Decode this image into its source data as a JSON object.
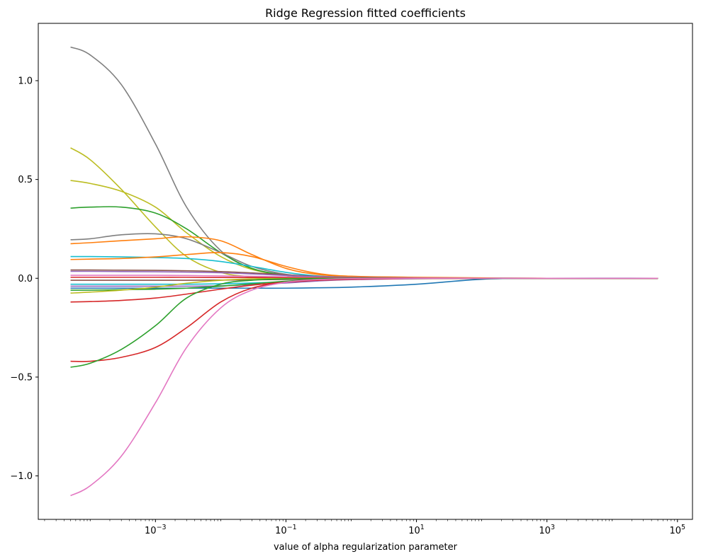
{
  "chart_data": {
    "type": "line",
    "title": "Ridge Regression fitted coefficients",
    "xlabel": "value of alpha regularization parameter",
    "ylabel": "",
    "x_scale": "log",
    "xlim": [
      1.6e-05,
      170000.0
    ],
    "ylim": [
      -1.22,
      1.29
    ],
    "x_ticks": [
      {
        "value": 0.001,
        "base": "10",
        "exp": "−3"
      },
      {
        "value": 0.1,
        "base": "10",
        "exp": "−1"
      },
      {
        "value": 10,
        "base": "10",
        "exp": "1"
      },
      {
        "value": 1000,
        "base": "10",
        "exp": "3"
      },
      {
        "value": 100000,
        "base": "10",
        "exp": "5"
      }
    ],
    "y_ticks": [
      {
        "value": -1.0,
        "label": "−1.0"
      },
      {
        "value": -0.5,
        "label": "−0.5"
      },
      {
        "value": 0.0,
        "label": "0.0"
      },
      {
        "value": 0.5,
        "label": "0.5"
      },
      {
        "value": 1.0,
        "label": "1.0"
      }
    ],
    "grid": false,
    "x": [
      5e-05,
      0.0001,
      0.0003,
      0.001,
      0.003,
      0.01,
      0.03,
      0.1,
      0.3,
      1,
      10,
      100,
      1000,
      50000
    ],
    "series": [
      {
        "color": "#7f7f7f",
        "values": [
          1.17,
          1.13,
          0.98,
          0.68,
          0.36,
          0.14,
          0.05,
          0.018,
          0.008,
          0.003,
          0.001,
          0.0,
          0.0,
          0.0
        ]
      },
      {
        "color": "#bcbd22",
        "values": [
          0.66,
          0.6,
          0.45,
          0.26,
          0.11,
          0.03,
          0.008,
          0.002,
          0.001,
          0.0,
          0.0,
          0.0,
          0.0,
          0.0
        ]
      },
      {
        "color": "#bcbd22",
        "values": [
          0.495,
          0.48,
          0.44,
          0.36,
          0.23,
          0.11,
          0.045,
          0.015,
          0.006,
          0.002,
          0.001,
          0.0,
          0.0,
          0.0
        ]
      },
      {
        "color": "#2ca02c",
        "values": [
          0.355,
          0.36,
          0.36,
          0.33,
          0.25,
          0.13,
          0.05,
          0.015,
          0.005,
          0.002,
          0.0,
          0.0,
          0.0,
          0.0
        ]
      },
      {
        "color": "#7f7f7f",
        "values": [
          0.195,
          0.2,
          0.22,
          0.225,
          0.2,
          0.13,
          0.06,
          0.02,
          0.007,
          0.003,
          0.001,
          0.0,
          0.0,
          0.0
        ]
      },
      {
        "color": "#ff7f0e",
        "values": [
          0.175,
          0.18,
          0.19,
          0.2,
          0.21,
          0.19,
          0.12,
          0.05,
          0.02,
          0.01,
          0.005,
          0.002,
          0.0,
          0.0
        ]
      },
      {
        "color": "#17becf",
        "values": [
          0.11,
          0.11,
          0.108,
          0.105,
          0.1,
          0.085,
          0.06,
          0.03,
          0.012,
          0.005,
          0.001,
          0.0,
          0.0,
          0.0
        ]
      },
      {
        "color": "#ff7f0e",
        "values": [
          0.095,
          0.097,
          0.1,
          0.108,
          0.12,
          0.13,
          0.11,
          0.06,
          0.025,
          0.01,
          0.003,
          0.001,
          0.0,
          0.0
        ]
      },
      {
        "color": "#8c564b",
        "values": [
          0.042,
          0.042,
          0.041,
          0.04,
          0.038,
          0.034,
          0.027,
          0.018,
          0.01,
          0.005,
          0.002,
          0.0,
          0.0,
          0.0
        ]
      },
      {
        "color": "#9467bd",
        "values": [
          0.035,
          0.035,
          0.034,
          0.033,
          0.031,
          0.028,
          0.022,
          0.014,
          0.008,
          0.004,
          0.001,
          0.0,
          0.0,
          0.0
        ]
      },
      {
        "color": "#e377c2",
        "values": [
          0.015,
          0.015,
          0.015,
          0.015,
          0.014,
          0.012,
          0.01,
          0.007,
          0.004,
          0.002,
          0.001,
          0.0,
          0.0,
          0.0
        ]
      },
      {
        "color": "#d62728",
        "values": [
          0.005,
          0.005,
          0.005,
          0.005,
          0.005,
          0.004,
          0.004,
          0.003,
          0.002,
          0.001,
          0.0,
          0.0,
          0.0,
          0.0
        ]
      },
      {
        "color": "#8c564b",
        "values": [
          -0.01,
          -0.01,
          -0.01,
          -0.01,
          -0.01,
          -0.009,
          -0.008,
          -0.006,
          -0.004,
          -0.002,
          -0.001,
          0.0,
          0.0,
          0.0
        ]
      },
      {
        "color": "#17becf",
        "values": [
          -0.03,
          -0.03,
          -0.03,
          -0.03,
          -0.03,
          -0.028,
          -0.024,
          -0.018,
          -0.01,
          -0.005,
          -0.002,
          0.0,
          0.0,
          0.0
        ]
      },
      {
        "color": "#9467bd",
        "values": [
          -0.04,
          -0.04,
          -0.04,
          -0.04,
          -0.04,
          -0.038,
          -0.032,
          -0.024,
          -0.014,
          -0.007,
          -0.002,
          0.0,
          0.0,
          0.0
        ]
      },
      {
        "color": "#1f77b4",
        "values": [
          -0.05,
          -0.05,
          -0.05,
          -0.05,
          -0.05,
          -0.05,
          -0.05,
          -0.05,
          -0.048,
          -0.045,
          -0.03,
          -0.005,
          0.0,
          0.0
        ]
      },
      {
        "color": "#2ca02c",
        "values": [
          -0.06,
          -0.06,
          -0.058,
          -0.055,
          -0.05,
          -0.04,
          -0.028,
          -0.015,
          -0.007,
          -0.003,
          -0.001,
          0.0,
          0.0,
          0.0
        ]
      },
      {
        "color": "#bcbd22",
        "values": [
          -0.075,
          -0.07,
          -0.06,
          -0.045,
          -0.025,
          -0.01,
          -0.003,
          -0.001,
          0.0,
          0.0,
          0.0,
          0.0,
          0.0,
          0.0
        ]
      },
      {
        "color": "#d62728",
        "values": [
          -0.12,
          -0.118,
          -0.112,
          -0.1,
          -0.08,
          -0.055,
          -0.035,
          -0.02,
          -0.01,
          -0.005,
          -0.001,
          0.0,
          0.0,
          0.0
        ]
      },
      {
        "color": "#d62728",
        "values": [
          -0.42,
          -0.42,
          -0.4,
          -0.35,
          -0.25,
          -0.12,
          -0.05,
          -0.02,
          -0.01,
          -0.005,
          -0.001,
          0.0,
          0.0,
          0.0
        ]
      },
      {
        "color": "#2ca02c",
        "values": [
          -0.45,
          -0.43,
          -0.36,
          -0.24,
          -0.1,
          -0.03,
          -0.01,
          -0.003,
          -0.001,
          0.0,
          0.0,
          0.0,
          0.0,
          0.0
        ]
      },
      {
        "color": "#e377c2",
        "values": [
          -1.1,
          -1.05,
          -0.9,
          -0.63,
          -0.35,
          -0.15,
          -0.06,
          -0.02,
          -0.007,
          -0.002,
          0.0,
          0.0,
          0.0,
          0.0
        ]
      }
    ]
  }
}
